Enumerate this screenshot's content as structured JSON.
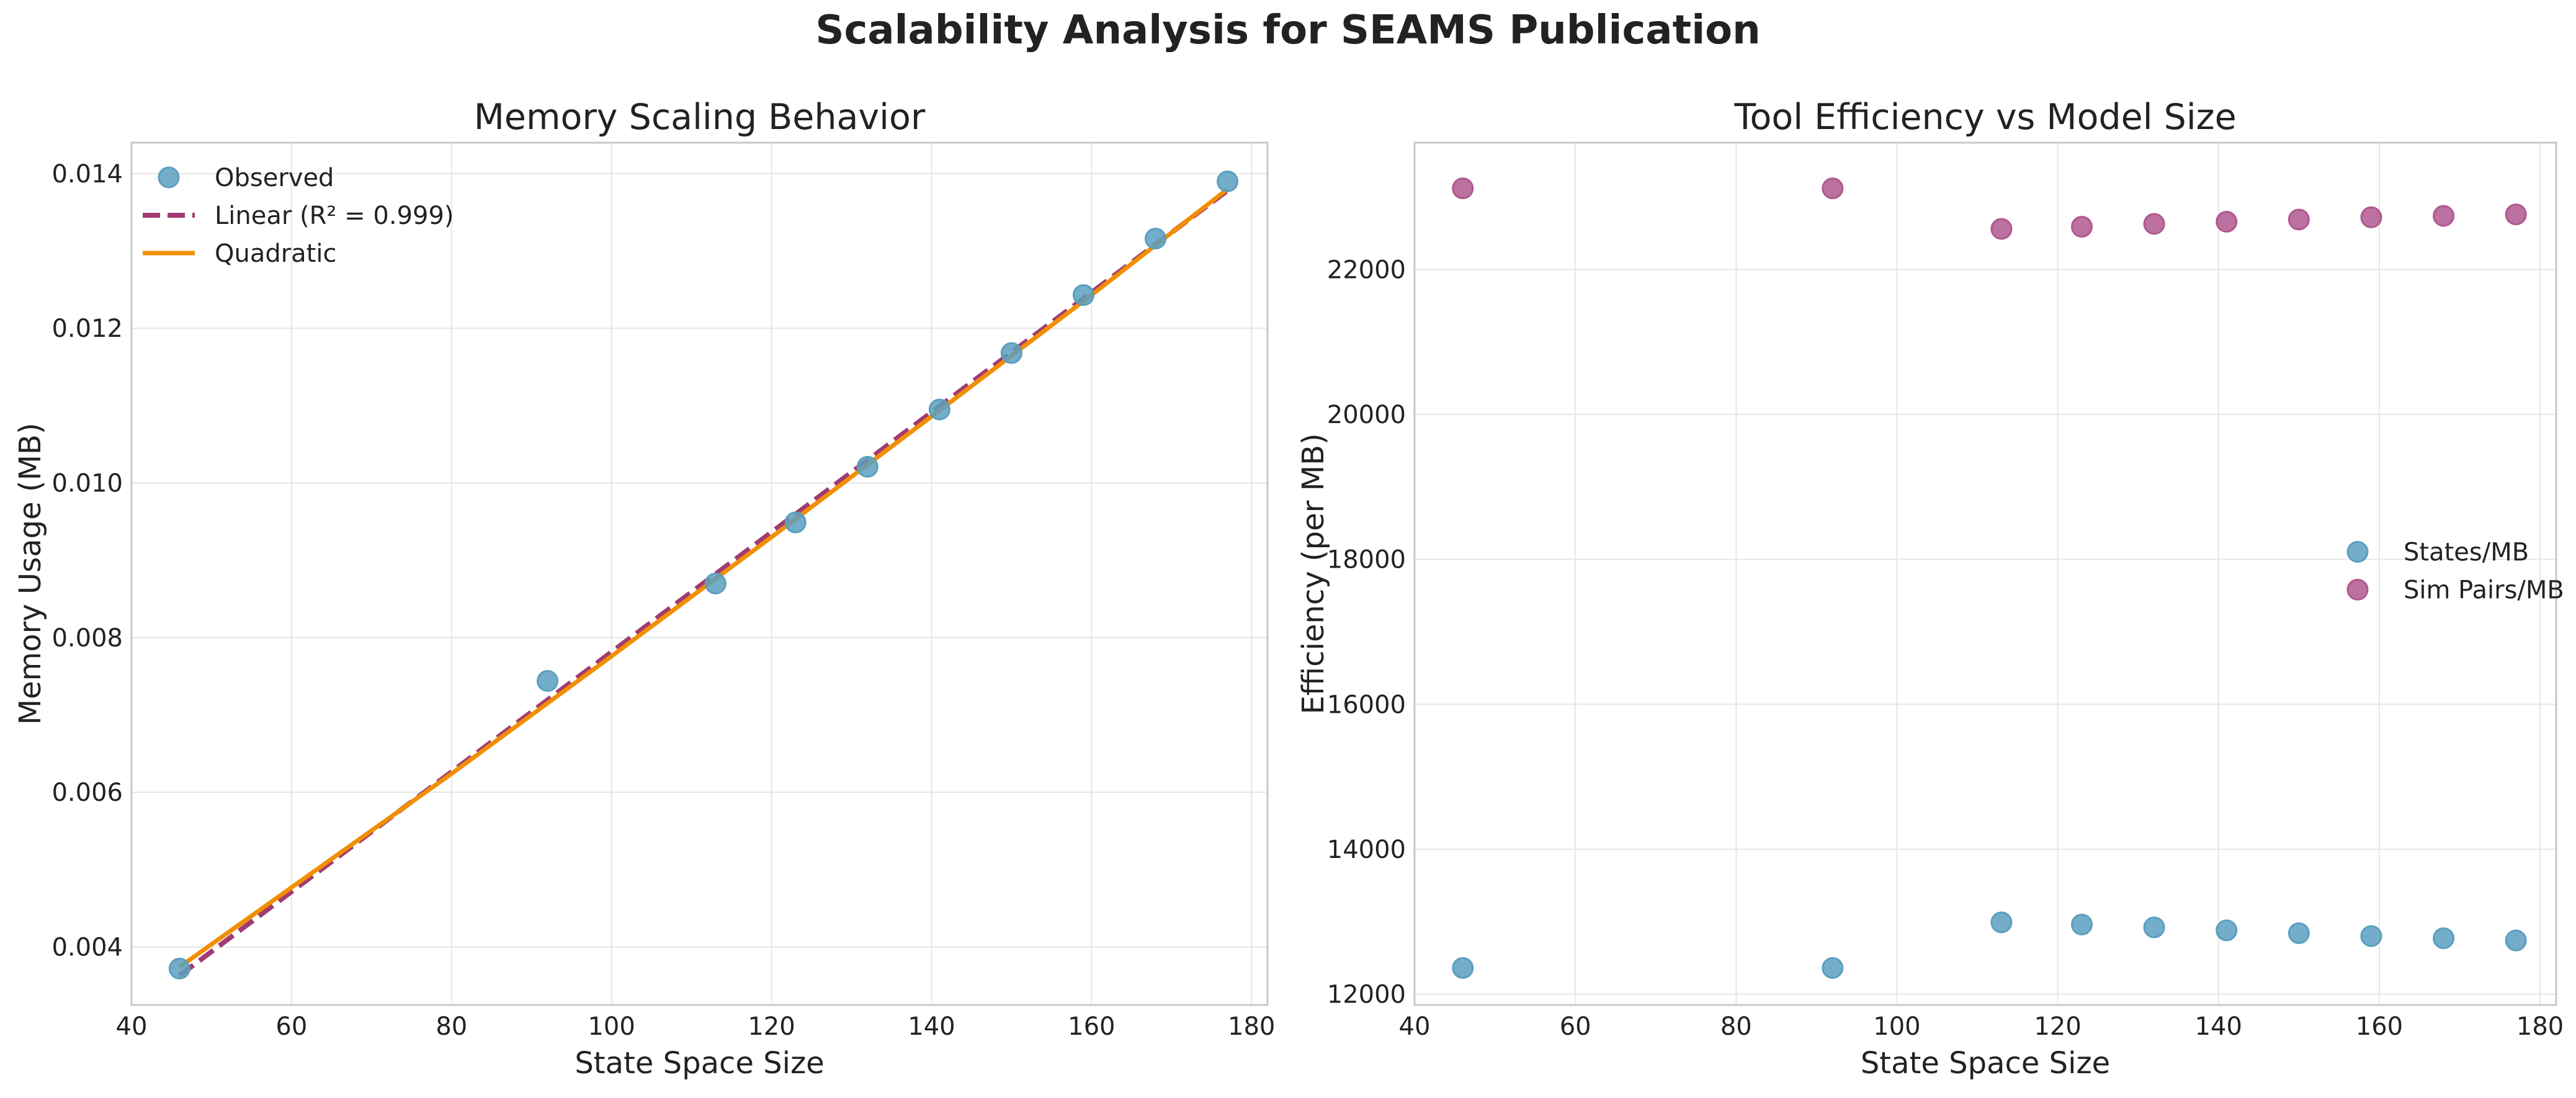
{
  "figure_title": "Scalability Analysis for SEAMS Publication",
  "colors": {
    "observed": "#5b9fbf",
    "linear": "#a23b72",
    "quadratic": "#f18f01",
    "sim_pairs": "#b0588f"
  },
  "chart_data": [
    {
      "type": "scatter",
      "title": "Memory Scaling Behavior",
      "xlabel": "State Space Size",
      "ylabel": "Memory Usage (MB)",
      "xlim": [
        40,
        182
      ],
      "ylim": [
        0.00325,
        0.0144
      ],
      "xticks": [
        40,
        60,
        80,
        100,
        120,
        140,
        160,
        180
      ],
      "yticks": [
        0.004,
        0.006,
        0.008,
        0.01,
        0.012,
        0.014
      ],
      "ytick_labels": [
        "0.004",
        "0.006",
        "0.008",
        "0.010",
        "0.012",
        "0.014"
      ],
      "grid": true,
      "legend_position": "upper-left",
      "series": [
        {
          "name": "Observed",
          "kind": "scatter",
          "x": [
            46,
            92,
            113,
            123,
            132,
            141,
            150,
            159,
            168,
            177
          ],
          "y": [
            0.00372,
            0.00744,
            0.0087,
            0.00949,
            0.01021,
            0.01095,
            0.01168,
            0.01243,
            0.01316,
            0.0139
          ]
        },
        {
          "name": "Linear (R² = 0.999)",
          "kind": "dashed-line",
          "x": [
            46,
            177
          ],
          "y": [
            0.00363,
            0.01378
          ]
        },
        {
          "name": "Quadratic",
          "kind": "line",
          "x": [
            46,
            80,
            100,
            120,
            140,
            160,
            177
          ],
          "y": [
            0.00374,
            0.00624,
            0.00776,
            0.0093,
            0.01086,
            0.01243,
            0.0138
          ]
        }
      ]
    },
    {
      "type": "scatter",
      "title": "Tool Efficiency vs Model Size",
      "xlabel": "State Space Size",
      "ylabel": "Efficiency (per MB)",
      "xlim": [
        40,
        182
      ],
      "ylim": [
        11850,
        23750
      ],
      "xticks": [
        40,
        60,
        80,
        100,
        120,
        140,
        160,
        180
      ],
      "yticks": [
        12000,
        14000,
        16000,
        18000,
        20000,
        22000
      ],
      "ytick_labels": [
        "12000",
        "14000",
        "16000",
        "18000",
        "20000",
        "22000"
      ],
      "grid": true,
      "legend_position": "center-right",
      "series": [
        {
          "name": "States/MB",
          "kind": "scatter",
          "x": [
            46,
            92,
            113,
            123,
            132,
            141,
            150,
            159,
            168,
            177
          ],
          "y": [
            12360,
            12360,
            12990,
            12960,
            12920,
            12880,
            12840,
            12800,
            12770,
            12740
          ]
        },
        {
          "name": "Sim Pairs/MB",
          "kind": "scatter",
          "x": [
            46,
            92,
            113,
            123,
            132,
            141,
            150,
            159,
            168,
            177
          ],
          "y": [
            23120,
            23120,
            22560,
            22590,
            22630,
            22660,
            22690,
            22720,
            22740,
            22760
          ]
        }
      ]
    }
  ]
}
